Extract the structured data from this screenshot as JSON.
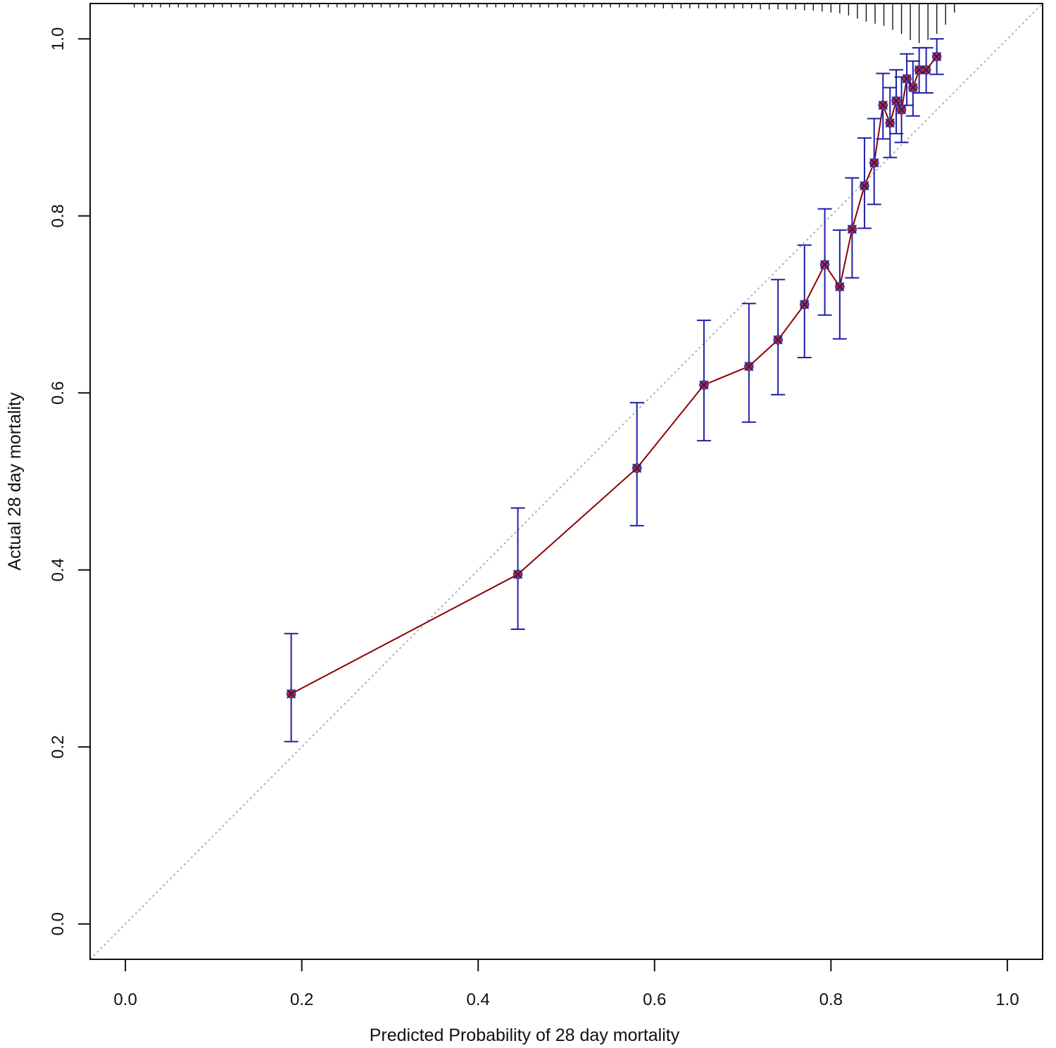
{
  "chart_data": {
    "type": "scatter",
    "subtype": "calibration-plot",
    "title": "",
    "xlabel": "Predicted Probability of 28 day mortality",
    "ylabel": "Actual 28 day mortality",
    "xlim": [
      -0.04,
      1.04
    ],
    "ylim": [
      -0.04,
      1.04
    ],
    "x_ticks": [
      0.0,
      0.2,
      0.4,
      0.6,
      0.8,
      1.0
    ],
    "x_tick_labels": [
      "0.0",
      "0.2",
      "0.4",
      "0.6",
      "0.8",
      "1.0"
    ],
    "y_ticks": [
      0.0,
      0.2,
      0.4,
      0.6,
      0.8,
      1.0
    ],
    "y_tick_labels": [
      "0.0",
      "0.2",
      "0.4",
      "0.6",
      "0.8",
      "1.0"
    ],
    "grid": false,
    "reference_line": {
      "name": "ideal calibration",
      "from": [
        -0.04,
        -0.04
      ],
      "to": [
        1.04,
        1.04
      ],
      "style": "dotted",
      "color": "#b3b3b3"
    },
    "series": [
      {
        "name": "observed",
        "line_color": "#8b0000",
        "point_fill": "#cc1f1f",
        "point_edge": "#3a3aa8",
        "errorbar_color": "#1f1fa8",
        "points": [
          {
            "x": 0.188,
            "y": 0.26,
            "lower": 0.206,
            "upper": 0.328
          },
          {
            "x": 0.445,
            "y": 0.395,
            "lower": 0.333,
            "upper": 0.47
          },
          {
            "x": 0.58,
            "y": 0.515,
            "lower": 0.45,
            "upper": 0.589
          },
          {
            "x": 0.656,
            "y": 0.609,
            "lower": 0.546,
            "upper": 0.682
          },
          {
            "x": 0.707,
            "y": 0.63,
            "lower": 0.567,
            "upper": 0.701
          },
          {
            "x": 0.74,
            "y": 0.66,
            "lower": 0.598,
            "upper": 0.728
          },
          {
            "x": 0.77,
            "y": 0.7,
            "lower": 0.64,
            "upper": 0.767
          },
          {
            "x": 0.793,
            "y": 0.745,
            "lower": 0.688,
            "upper": 0.808
          },
          {
            "x": 0.81,
            "y": 0.72,
            "lower": 0.661,
            "upper": 0.784
          },
          {
            "x": 0.824,
            "y": 0.785,
            "lower": 0.73,
            "upper": 0.843
          },
          {
            "x": 0.838,
            "y": 0.834,
            "lower": 0.786,
            "upper": 0.888
          },
          {
            "x": 0.849,
            "y": 0.86,
            "lower": 0.813,
            "upper": 0.91
          },
          {
            "x": 0.859,
            "y": 0.925,
            "lower": 0.887,
            "upper": 0.961
          },
          {
            "x": 0.867,
            "y": 0.905,
            "lower": 0.866,
            "upper": 0.945
          },
          {
            "x": 0.874,
            "y": 0.93,
            "lower": 0.893,
            "upper": 0.965
          },
          {
            "x": 0.88,
            "y": 0.92,
            "lower": 0.883,
            "upper": 0.957
          },
          {
            "x": 0.886,
            "y": 0.955,
            "lower": 0.925,
            "upper": 0.983
          },
          {
            "x": 0.893,
            "y": 0.945,
            "lower": 0.913,
            "upper": 0.975
          },
          {
            "x": 0.9,
            "y": 0.965,
            "lower": 0.939,
            "upper": 0.99
          },
          {
            "x": 0.908,
            "y": 0.965,
            "lower": 0.939,
            "upper": 0.99
          },
          {
            "x": 0.92,
            "y": 0.98,
            "lower": 0.96,
            "upper": 1.0
          }
        ]
      }
    ],
    "rug": {
      "position": "top",
      "color": "#111111",
      "x": [
        0.01,
        0.02,
        0.03,
        0.04,
        0.05,
        0.06,
        0.07,
        0.08,
        0.09,
        0.1,
        0.11,
        0.12,
        0.13,
        0.14,
        0.15,
        0.16,
        0.17,
        0.18,
        0.19,
        0.2,
        0.21,
        0.22,
        0.23,
        0.24,
        0.25,
        0.26,
        0.27,
        0.28,
        0.29,
        0.3,
        0.31,
        0.32,
        0.33,
        0.34,
        0.35,
        0.36,
        0.37,
        0.38,
        0.39,
        0.4,
        0.41,
        0.42,
        0.43,
        0.44,
        0.45,
        0.46,
        0.47,
        0.48,
        0.49,
        0.5,
        0.51,
        0.52,
        0.53,
        0.54,
        0.55,
        0.56,
        0.57,
        0.58,
        0.59,
        0.6,
        0.61,
        0.62,
        0.63,
        0.64,
        0.65,
        0.66,
        0.67,
        0.68,
        0.69,
        0.7,
        0.71,
        0.72,
        0.73,
        0.74,
        0.75,
        0.76,
        0.77,
        0.78,
        0.79,
        0.8,
        0.81,
        0.82,
        0.83,
        0.84,
        0.85,
        0.86,
        0.87,
        0.88,
        0.89,
        0.9,
        0.91,
        0.92,
        0.93,
        0.94
      ],
      "counts": [
        1,
        1,
        1,
        1,
        1,
        1,
        1,
        1,
        1,
        1,
        1,
        1,
        1,
        1,
        1,
        1,
        1,
        1,
        1,
        1,
        1,
        1,
        1,
        1,
        1,
        1,
        1,
        1,
        1,
        1,
        1,
        1,
        1,
        1,
        1,
        1,
        1,
        1,
        1,
        1,
        1,
        1,
        1,
        1,
        1,
        1,
        1,
        1,
        1,
        1,
        1,
        1,
        1,
        1,
        1,
        1,
        1,
        1,
        1,
        1,
        2,
        2,
        2,
        2,
        2,
        2,
        2,
        2,
        2,
        2,
        2,
        3,
        3,
        3,
        3,
        3,
        4,
        4,
        5,
        6,
        7,
        9,
        12,
        15,
        17,
        19,
        23,
        27,
        33,
        36,
        33,
        27,
        18,
        6
      ]
    }
  }
}
